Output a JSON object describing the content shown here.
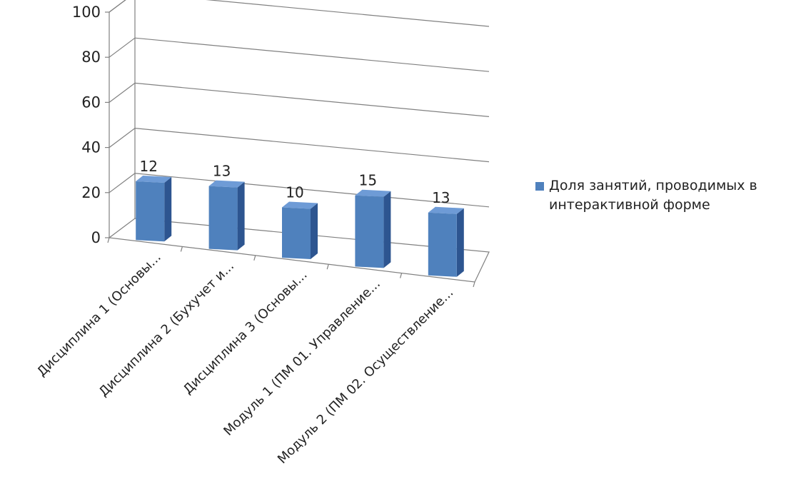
{
  "chart_data": {
    "type": "bar",
    "categories": [
      "Дисциплина 1 (Основы...",
      "Дисциплина 2 (Бухучет и...",
      "Дисциплина 3 (Основы...",
      "Модуль 1 (ПМ 01. Управление...",
      "Модуль 2 (ПМ 02. Осуществление..."
    ],
    "series": [
      {
        "name": "Доля занятий, проводимых в интерактивной форме",
        "values": [
          12,
          13,
          10,
          15,
          13
        ]
      }
    ],
    "title": "",
    "xlabel": "",
    "ylabel": "",
    "ylim": [
      0,
      100
    ],
    "yticks": [
      "0",
      "20",
      "40",
      "60",
      "80",
      "100"
    ],
    "grid": true,
    "legend_position": "right",
    "colors": {
      "bar_front": "#4F81BD",
      "bar_top": "#6E9BD6",
      "bar_side": "#2D5590",
      "axis": "#808080"
    }
  },
  "legend": {
    "line1": "Доля занятий, проводимых в",
    "line2": "интерактивной форме"
  }
}
